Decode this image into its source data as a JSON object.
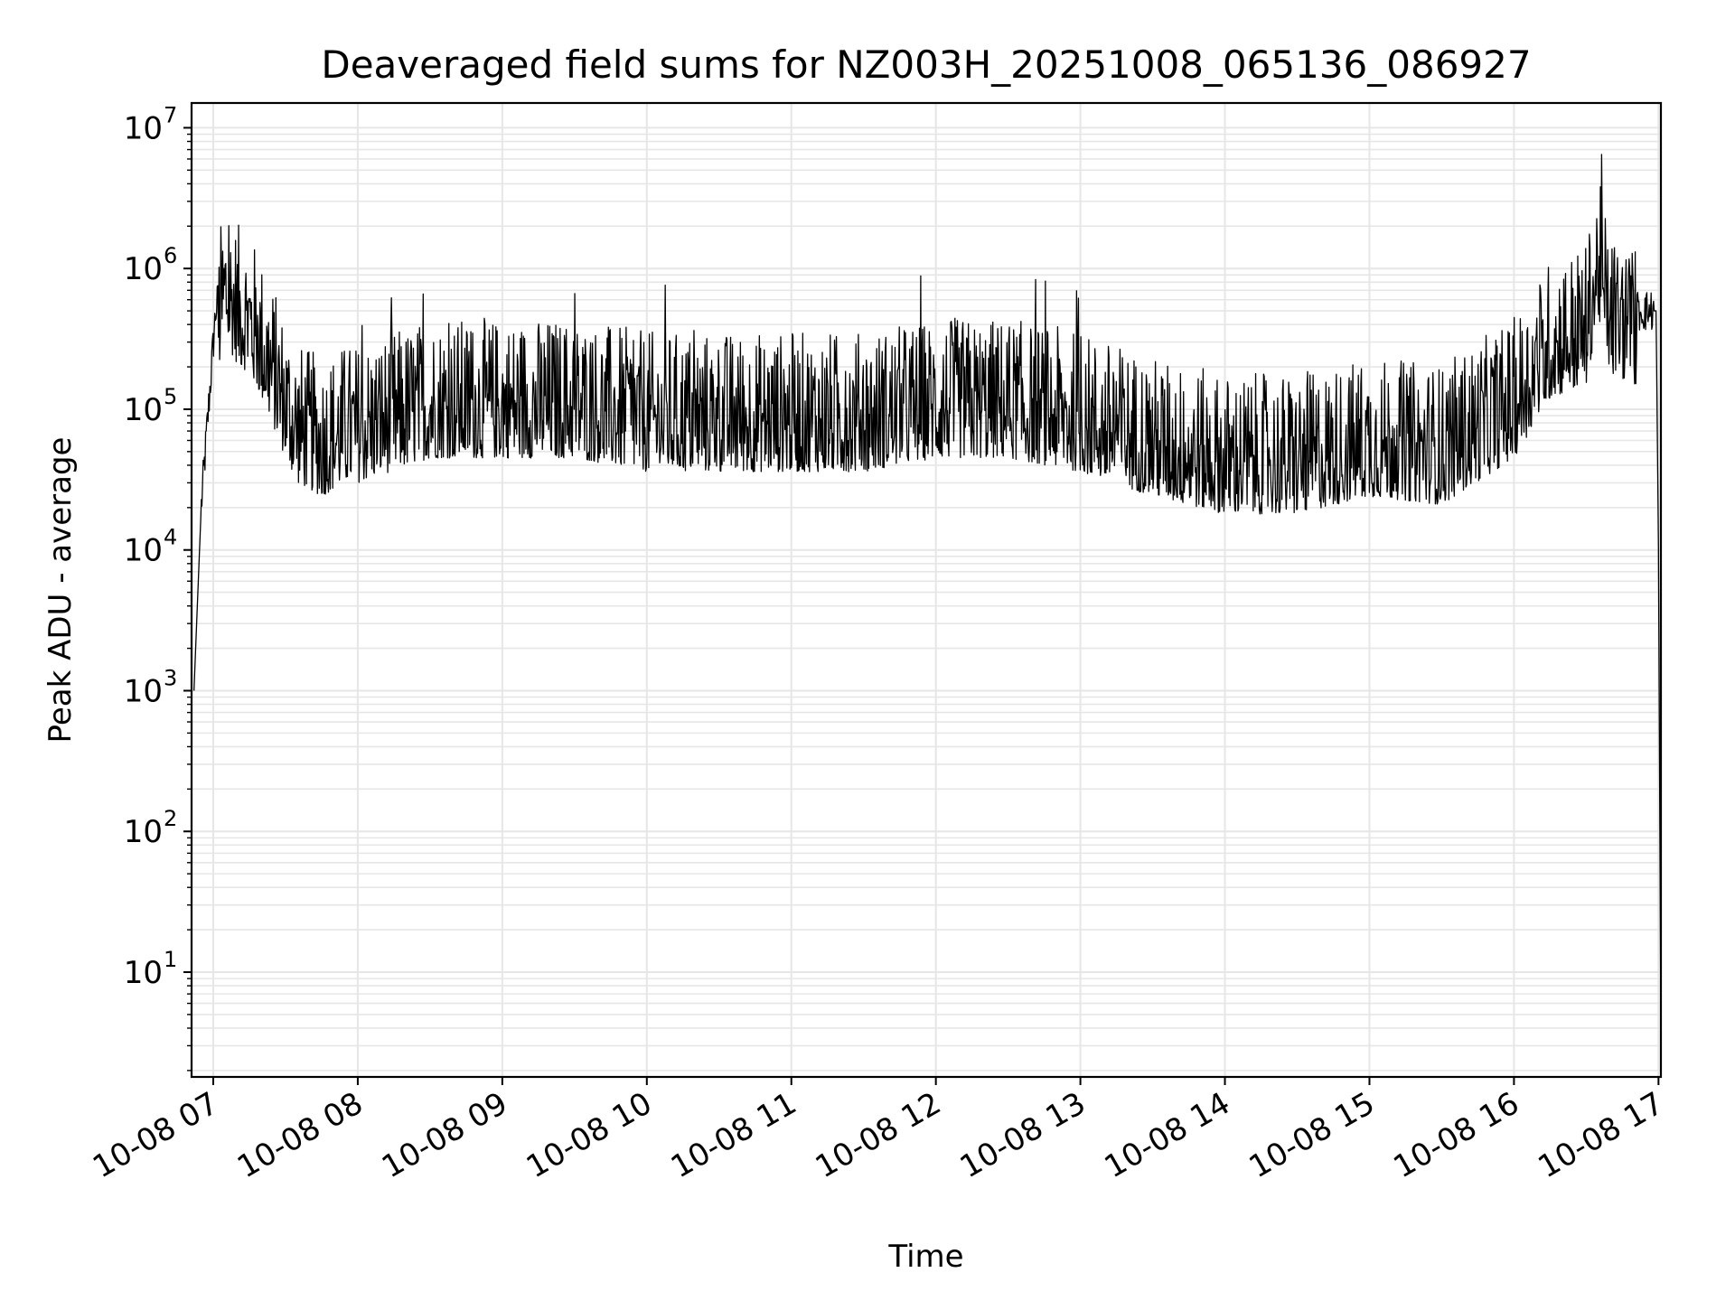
{
  "chart_data": {
    "type": "line",
    "title": "Deaveraged field sums for NZ003H_20251008_065136_086927",
    "xlabel": "Time",
    "ylabel": "Peak ADU - average",
    "y_scale": "log",
    "ylim": [
      1.8,
      15000000
    ],
    "xlim": [
      "10-08 06:51",
      "10-08 17:01"
    ],
    "grid": true,
    "grid_minor": true,
    "legend": "none",
    "colors": {
      "line": "#000000",
      "grid": "#e6e6e6",
      "axes": "#000000"
    },
    "x_ticks": [
      "10-08 07",
      "10-08 08",
      "10-08 09",
      "10-08 10",
      "10-08 11",
      "10-08 12",
      "10-08 13",
      "10-08 14",
      "10-08 15",
      "10-08 16",
      "10-08 17"
    ],
    "y_ticks": [
      {
        "base": "10",
        "exp": "1",
        "value": 10
      },
      {
        "base": "10",
        "exp": "2",
        "value": 100
      },
      {
        "base": "10",
        "exp": "3",
        "value": 1000
      },
      {
        "base": "10",
        "exp": "4",
        "value": 10000
      },
      {
        "base": "10",
        "exp": "5",
        "value": 100000
      },
      {
        "base": "10",
        "exp": "6",
        "value": 1000000
      },
      {
        "base": "10",
        "exp": "7",
        "value": 10000000
      }
    ],
    "series": [
      {
        "x": [
          "10-08 06:52",
          "10-08 06:55",
          "10-08 06:58",
          "10-08 07:01",
          "10-08 07:05",
          "10-08 07:10",
          "10-08 07:15",
          "10-08 07:20",
          "10-08 07:25",
          "10-08 07:30",
          "10-08 07:35",
          "10-08 07:40",
          "10-08 07:45",
          "10-08 07:50",
          "10-08 07:55",
          "10-08 08:00",
          "10-08 08:30",
          "10-08 09:00",
          "10-08 09:30",
          "10-08 10:00",
          "10-08 10:30",
          "10-08 11:00",
          "10-08 11:30",
          "10-08 12:00",
          "10-08 12:30",
          "10-08 13:00",
          "10-08 13:30",
          "10-08 14:00",
          "10-08 14:30",
          "10-08 15:00",
          "10-08 15:30",
          "10-08 16:00",
          "10-08 16:15",
          "10-08 16:30",
          "10-08 16:35",
          "10-08 16:40",
          "10-08 16:50",
          "10-08 16:59",
          "10-08 17:00",
          "10-08 17:01"
        ],
        "y": [
          1000,
          20000,
          100000,
          500000,
          1000000,
          700000,
          600000,
          400000,
          250000,
          150000,
          100000,
          90000,
          80000,
          90000,
          100000,
          100000,
          150000,
          150000,
          150000,
          120000,
          120000,
          120000,
          120000,
          150000,
          150000,
          120000,
          80000,
          60000,
          60000,
          80000,
          70000,
          150000,
          400000,
          500000,
          1500000,
          600000,
          500000,
          500000,
          10000,
          3.5
        ],
        "noise_range": [
          0.3,
          3
        ]
      }
    ]
  }
}
